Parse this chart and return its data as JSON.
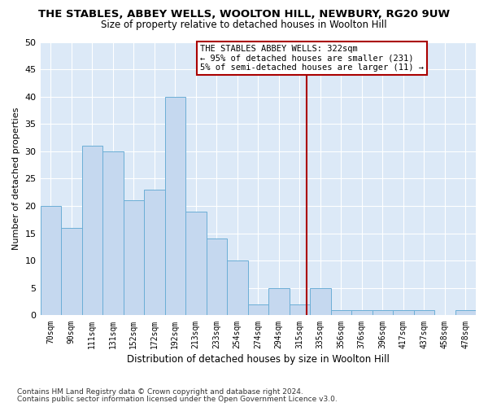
{
  "title": "THE STABLES, ABBEY WELLS, WOOLTON HILL, NEWBURY, RG20 9UW",
  "subtitle": "Size of property relative to detached houses in Woolton Hill",
  "xlabel": "Distribution of detached houses by size in Woolton Hill",
  "ylabel": "Number of detached properties",
  "bar_labels": [
    "70sqm",
    "90sqm",
    "111sqm",
    "131sqm",
    "152sqm",
    "172sqm",
    "192sqm",
    "213sqm",
    "233sqm",
    "254sqm",
    "274sqm",
    "294sqm",
    "315sqm",
    "335sqm",
    "356sqm",
    "376sqm",
    "396sqm",
    "417sqm",
    "437sqm",
    "458sqm",
    "478sqm"
  ],
  "bar_values": [
    20,
    16,
    31,
    30,
    21,
    23,
    40,
    19,
    14,
    10,
    2,
    5,
    2,
    5,
    1,
    1,
    1,
    1,
    1,
    0,
    1
  ],
  "bar_color": "#c5d8ef",
  "bar_edge_color": "#6baed6",
  "plot_bg_color": "#dce9f7",
  "fig_bg_color": "#ffffff",
  "grid_color": "#ffffff",
  "vline_color": "#aa0000",
  "annotation_title": "THE STABLES ABBEY WELLS: 322sqm",
  "annotation_line1": "← 95% of detached houses are smaller (231)",
  "annotation_line2": "5% of semi-detached houses are larger (11) →",
  "annotation_box_edge_color": "#aa0000",
  "ylim": [
    0,
    50
  ],
  "yticks": [
    0,
    5,
    10,
    15,
    20,
    25,
    30,
    35,
    40,
    45,
    50
  ],
  "footnote1": "Contains HM Land Registry data © Crown copyright and database right 2024.",
  "footnote2": "Contains public sector information licensed under the Open Government Licence v3.0."
}
